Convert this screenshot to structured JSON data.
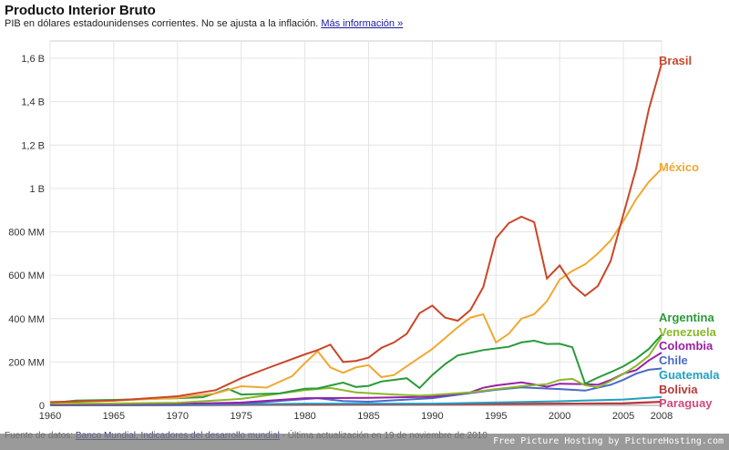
{
  "header": {
    "title": "Producto Interior Bruto",
    "subtitle": "PIB en dólares estadounidenses corrientes. No se ajusta a la inflación.",
    "more_link": "Más información »"
  },
  "footer": {
    "prefix": "Fuente de datos:",
    "source_link": "Banco Mundial, Indicadores del desarrollo mundial",
    "suffix": "- Última actualización en 19 de noviembre de 2010"
  },
  "watermark": "Free Picture Hosting by PictureHosting.com",
  "chart_data": {
    "type": "line",
    "title": "Producto Interior Bruto",
    "xlabel": "",
    "ylabel": "",
    "xlim": [
      1960,
      2008
    ],
    "ylim": [
      0,
      1650
    ],
    "unit": "millones USD",
    "x_ticks": [
      1960,
      1965,
      1970,
      1975,
      1980,
      1985,
      1990,
      1995,
      2000,
      2005,
      2008
    ],
    "y_ticks": [
      {
        "value": 0,
        "label": "0"
      },
      {
        "value": 200,
        "label": "200 MM"
      },
      {
        "value": 400,
        "label": "400 MM"
      },
      {
        "value": 600,
        "label": "600 MM"
      },
      {
        "value": 800,
        "label": "800 MM"
      },
      {
        "value": 1000,
        "label": "1 B"
      },
      {
        "value": 1200,
        "label": "1,2 B"
      },
      {
        "value": 1400,
        "label": "1,4 B"
      },
      {
        "value": 1600,
        "label": "1,6 B"
      }
    ],
    "grid": true,
    "legend": "right (labels at line ends)",
    "series": [
      {
        "name": "Brasil",
        "color": "#c8472a",
        "x": [
          1960,
          1965,
          1970,
          1973,
          1975,
          1977,
          1980,
          1981,
          1982,
          1983,
          1984,
          1985,
          1986,
          1987,
          1988,
          1989,
          1990,
          1991,
          1992,
          1993,
          1994,
          1995,
          1996,
          1997,
          1998,
          1999,
          2000,
          2001,
          2002,
          2003,
          2004,
          2005,
          2006,
          2007,
          2008
        ],
        "y": [
          15,
          22,
          42,
          70,
          125,
          170,
          235,
          255,
          280,
          200,
          205,
          220,
          265,
          290,
          330,
          425,
          460,
          405,
          390,
          440,
          545,
          770,
          840,
          870,
          845,
          585,
          645,
          555,
          505,
          550,
          665,
          880,
          1090,
          1365,
          1575
        ]
      },
      {
        "name": "México",
        "color": "#f0a830",
        "x": [
          1960,
          1965,
          1970,
          1973,
          1975,
          1977,
          1979,
          1980,
          1981,
          1982,
          1983,
          1984,
          1985,
          1986,
          1987,
          1988,
          1990,
          1992,
          1993,
          1994,
          1995,
          1996,
          1997,
          1998,
          1999,
          2000,
          2001,
          2002,
          2003,
          2004,
          2005,
          2006,
          2007,
          2008
        ],
        "y": [
          13,
          22,
          35,
          55,
          88,
          82,
          135,
          195,
          250,
          175,
          150,
          175,
          185,
          130,
          140,
          180,
          260,
          360,
          405,
          420,
          290,
          330,
          400,
          420,
          480,
          580,
          620,
          650,
          700,
          760,
          850,
          950,
          1030,
          1090
        ]
      },
      {
        "name": "Argentina",
        "color": "#2a9a3a",
        "x": [
          1960,
          1962,
          1965,
          1970,
          1972,
          1974,
          1975,
          1978,
          1980,
          1981,
          1983,
          1984,
          1985,
          1986,
          1988,
          1989,
          1990,
          1991,
          1992,
          1994,
          1996,
          1997,
          1998,
          1999,
          2000,
          2001,
          2002,
          2003,
          2004,
          2005,
          2006,
          2007,
          2008
        ],
        "y": [
          10,
          22,
          25,
          33,
          38,
          75,
          50,
          55,
          77,
          78,
          105,
          85,
          90,
          110,
          125,
          80,
          140,
          190,
          230,
          255,
          270,
          290,
          298,
          283,
          284,
          268,
          100,
          128,
          153,
          180,
          215,
          260,
          325
        ]
      },
      {
        "name": "Venezuela",
        "color": "#8ab82a",
        "x": [
          1960,
          1965,
          1970,
          1975,
          1980,
          1982,
          1984,
          1987,
          1989,
          1990,
          1993,
          1995,
          1997,
          1999,
          2000,
          2001,
          2002,
          2003,
          2004,
          2005,
          2006,
          2007,
          2008
        ],
        "y": [
          8,
          9,
          12,
          30,
          70,
          80,
          60,
          50,
          45,
          48,
          60,
          75,
          88,
          98,
          117,
          122,
          93,
          83,
          112,
          145,
          182,
          228,
          315
        ]
      },
      {
        "name": "Colombia",
        "color": "#9a20a8",
        "x": [
          1960,
          1965,
          1970,
          1975,
          1980,
          1985,
          1990,
          1993,
          1994,
          1995,
          1997,
          1999,
          2000,
          2002,
          2003,
          2004,
          2005,
          2006,
          2007,
          2008
        ],
        "y": [
          4,
          5,
          7,
          13,
          33,
          35,
          40,
          60,
          81,
          92,
          106,
          86,
          100,
          98,
          95,
          117,
          146,
          162,
          207,
          243
        ]
      },
      {
        "name": "Chile",
        "color": "#4a6ac8",
        "x": [
          1960,
          1965,
          1970,
          1975,
          1980,
          1981,
          1983,
          1985,
          1990,
          1995,
          1997,
          2000,
          2002,
          2004,
          2005,
          2006,
          2007,
          2008
        ],
        "y": [
          4,
          6,
          9,
          8,
          29,
          33,
          20,
          17,
          33,
          72,
          83,
          75,
          68,
          95,
          118,
          146,
          164,
          170
        ]
      },
      {
        "name": "Guatemala",
        "color": "#20a0c0",
        "x": [
          1960,
          1970,
          1980,
          1990,
          2000,
          2005,
          2008
        ],
        "y": [
          1,
          2,
          8,
          8,
          19,
          27,
          39
        ]
      },
      {
        "name": "Bolivia",
        "color": "#b83a3a",
        "x": [
          1960,
          1970,
          1980,
          1990,
          2000,
          2005,
          2008
        ],
        "y": [
          0.5,
          1,
          3,
          5,
          8,
          10,
          17
        ]
      },
      {
        "name": "Paraguay",
        "color": "#d04a7a",
        "x": [
          1960,
          1970,
          1980,
          1990,
          2000,
          2005,
          2008
        ],
        "y": [
          0.3,
          0.6,
          4,
          5,
          8,
          8,
          16
        ]
      }
    ]
  }
}
